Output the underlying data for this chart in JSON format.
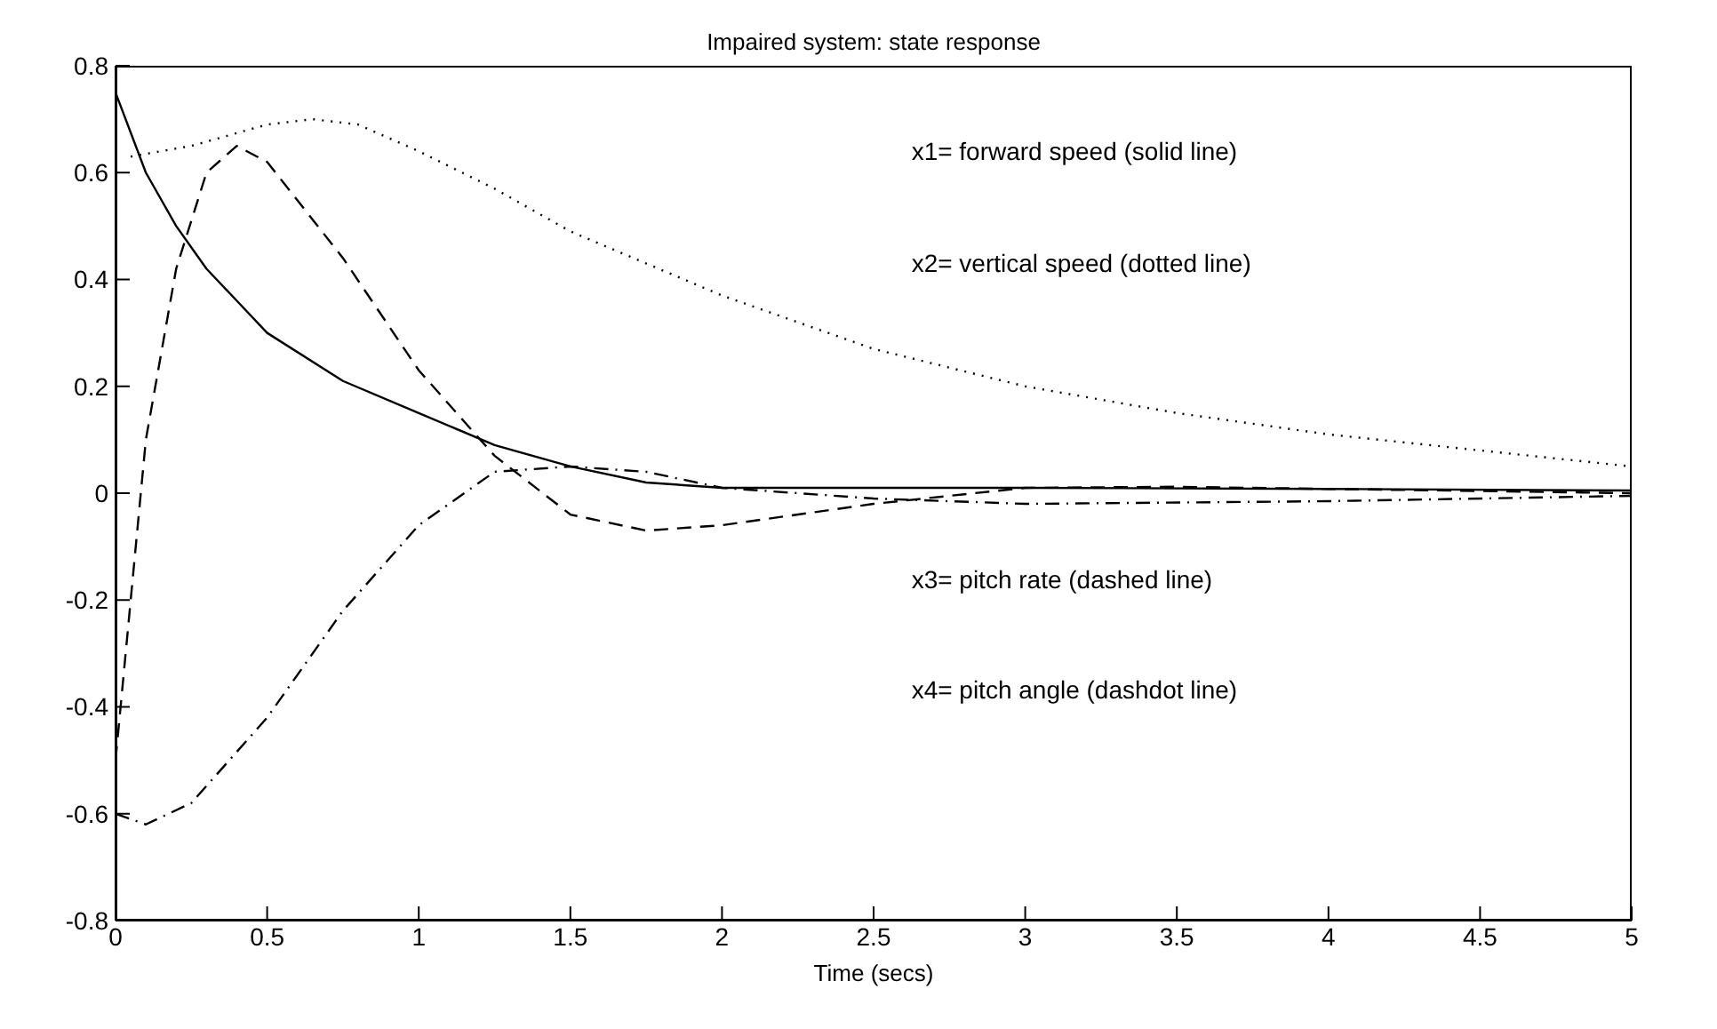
{
  "chart_data": {
    "type": "line",
    "title": "Impaired system: state response",
    "xlabel": "Time (secs)",
    "xlim": [
      0,
      5
    ],
    "xticks": [
      0,
      0.5,
      1,
      1.5,
      2,
      2.5,
      3,
      3.5,
      4,
      4.5,
      5
    ],
    "ylim": [
      -0.8,
      0.8
    ],
    "yticks": [
      -0.8,
      -0.6,
      -0.4,
      -0.2,
      0,
      0.2,
      0.4,
      0.6,
      0.8
    ],
    "grid": false,
    "legend": false,
    "marker": "none",
    "annotations": [
      "x1= forward speed (solid line)",
      "x2= vertical speed (dotted line)",
      "x3= pitch rate (dashed line)",
      "x4= pitch angle (dashdot line)"
    ],
    "series": [
      {
        "color": "#000000",
        "line_style": "solid",
        "x": [
          0,
          0.1,
          0.2,
          0.3,
          0.4,
          0.5,
          0.75,
          1,
          1.25,
          1.5,
          1.75,
          2,
          2.5,
          3,
          4,
          5
        ],
        "values": [
          0.75,
          0.6,
          0.5,
          0.42,
          0.36,
          0.3,
          0.21,
          0.15,
          0.09,
          0.05,
          0.02,
          0.01,
          0.01,
          0.01,
          0.008,
          0.005
        ]
      },
      {
        "color": "#000000",
        "line_style": "dotted",
        "x": [
          0.05,
          0.25,
          0.5,
          0.65,
          0.8,
          1,
          1.25,
          1.5,
          2,
          2.5,
          3,
          3.5,
          4,
          4.5,
          5
        ],
        "values": [
          0.63,
          0.65,
          0.69,
          0.7,
          0.69,
          0.64,
          0.57,
          0.49,
          0.37,
          0.27,
          0.2,
          0.15,
          0.11,
          0.08,
          0.05
        ]
      },
      {
        "color": "#000000",
        "line_style": "dashed",
        "x": [
          0,
          0.05,
          0.1,
          0.2,
          0.3,
          0.4,
          0.5,
          0.75,
          1,
          1.25,
          1.5,
          1.75,
          2,
          2.5,
          3,
          3.5,
          4,
          5
        ],
        "values": [
          -0.5,
          -0.2,
          0.1,
          0.42,
          0.6,
          0.65,
          0.62,
          0.44,
          0.23,
          0.07,
          -0.04,
          -0.07,
          -0.06,
          -0.02,
          0.01,
          0.012,
          0.008,
          0
        ]
      },
      {
        "color": "#000000",
        "line_style": "dashdot",
        "x": [
          0,
          0.1,
          0.25,
          0.5,
          0.75,
          1,
          1.25,
          1.5,
          1.75,
          2,
          2.5,
          3,
          4,
          5
        ],
        "values": [
          -0.6,
          -0.62,
          -0.58,
          -0.42,
          -0.22,
          -0.06,
          0.04,
          0.05,
          0.04,
          0.01,
          -0.01,
          -0.02,
          -0.015,
          -0.005
        ]
      }
    ]
  }
}
